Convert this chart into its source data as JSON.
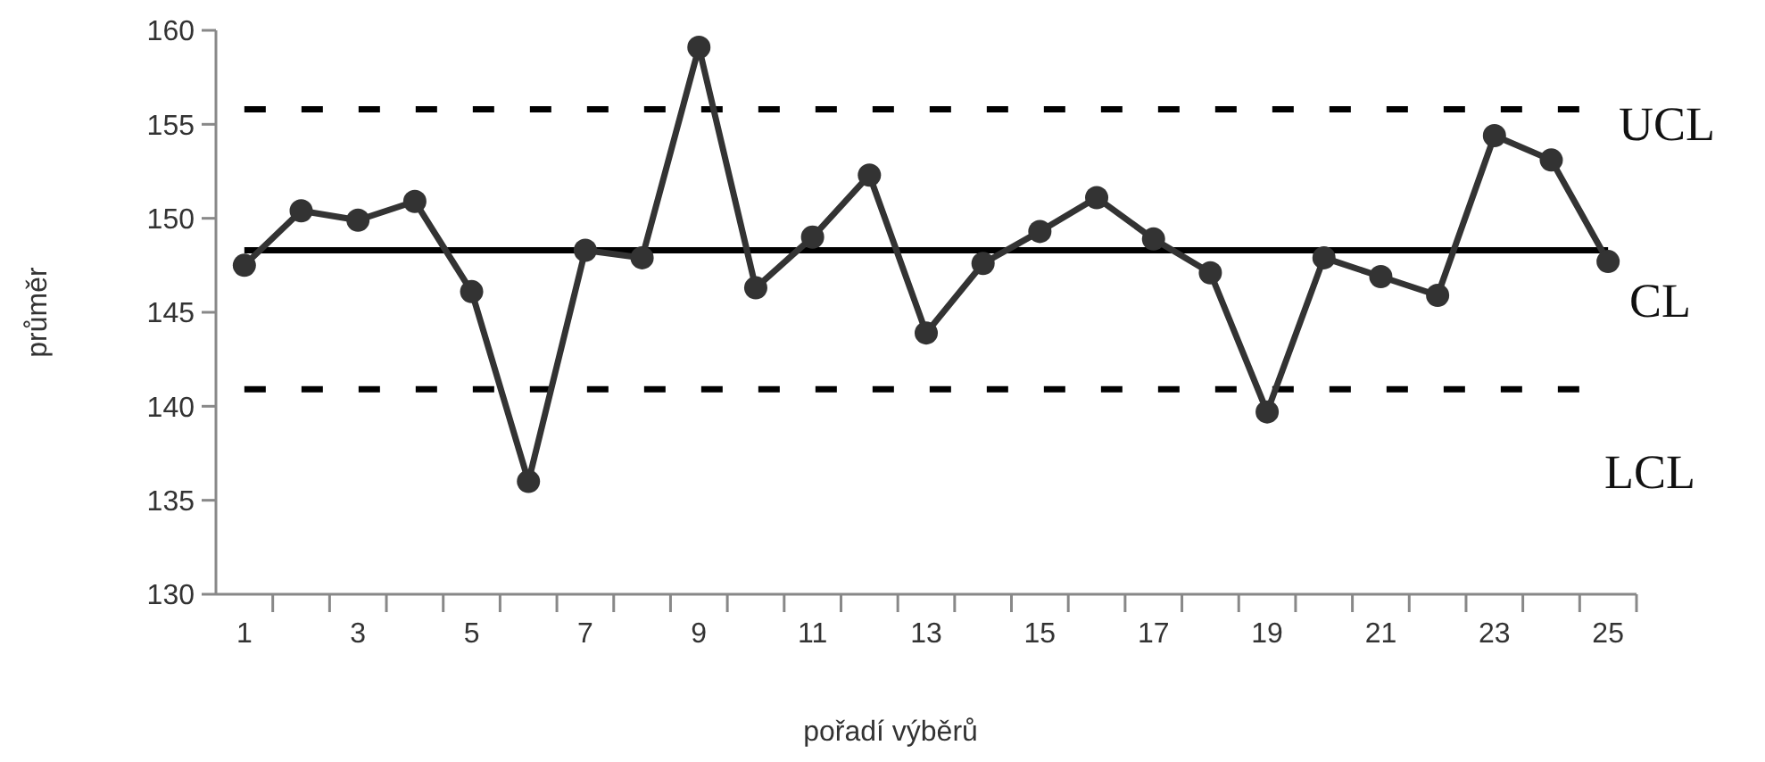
{
  "chart_data": {
    "type": "line",
    "xlabel": "pořadí výběrů",
    "ylabel": "průměr",
    "x": [
      1,
      2,
      3,
      4,
      5,
      6,
      7,
      8,
      9,
      10,
      11,
      12,
      13,
      14,
      15,
      16,
      17,
      18,
      19,
      20,
      21,
      22,
      23,
      24,
      25
    ],
    "xlim": [
      0.5,
      25.5
    ],
    "xticks": [
      1,
      3,
      5,
      7,
      9,
      11,
      13,
      15,
      17,
      19,
      21,
      23,
      25,
      {
        "value": 1.5,
        "label": null
      },
      {
        "value": 2.5,
        "label": null
      },
      {
        "value": 3.5,
        "label": null
      },
      {
        "value": 4.5,
        "label": null
      },
      {
        "value": 5.5,
        "label": null
      },
      {
        "value": 6.5,
        "label": null
      },
      {
        "value": 7.5,
        "label": null
      },
      {
        "value": 8.5,
        "label": null
      },
      {
        "value": 9.5,
        "label": null
      },
      {
        "value": 10.5,
        "label": null
      },
      {
        "value": 11.5,
        "label": null
      },
      {
        "value": 12.5,
        "label": null
      },
      {
        "value": 13.5,
        "label": null
      },
      {
        "value": 14.5,
        "label": null
      },
      {
        "value": 15.5,
        "label": null
      },
      {
        "value": 16.5,
        "label": null
      },
      {
        "value": 17.5,
        "label": null
      },
      {
        "value": 18.5,
        "label": null
      },
      {
        "value": 19.5,
        "label": null
      },
      {
        "value": 20.5,
        "label": null
      },
      {
        "value": 21.5,
        "label": null
      },
      {
        "value": 22.5,
        "label": null
      },
      {
        "value": 23.5,
        "label": null
      },
      {
        "value": 24.5,
        "label": null
      },
      {
        "value": 25.5,
        "label": null
      }
    ],
    "series": [
      {
        "color": "#333333",
        "values": [
          147.5,
          150.4,
          149.9,
          150.9,
          146.1,
          136.0,
          148.3,
          147.9,
          159.1,
          146.3,
          149.0,
          152.3,
          143.9,
          147.6,
          149.3,
          151.1,
          148.9,
          147.1,
          139.7,
          147.9,
          146.9,
          145.9,
          154.4,
          153.1,
          147.7
        ]
      }
    ],
    "marker": "circle",
    "line_style": "solid",
    "ylim": [
      130,
      160
    ],
    "yticks": [
      130,
      135,
      140,
      145,
      150,
      155,
      160
    ],
    "ref_lines": [
      {
        "axis": "y",
        "value": 155.8,
        "label": "UCL",
        "line_style": "dashed",
        "color": "#000000"
      },
      {
        "axis": "y",
        "value": 148.3,
        "label": "CL",
        "line_style": "solid",
        "color": "#000000"
      },
      {
        "axis": "y",
        "value": 140.9,
        "label": "LCL",
        "line_style": "dashed",
        "color": "#000000"
      }
    ]
  }
}
